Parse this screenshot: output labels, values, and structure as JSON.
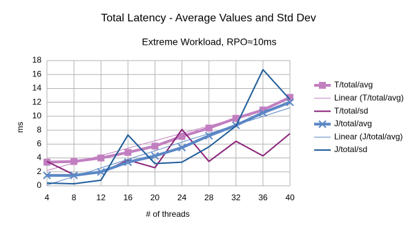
{
  "chart_data": {
    "type": "line",
    "title": "Total Latency - Average Values and Std Dev",
    "subtitle": "Extreme Workload, RPO≈10ms",
    "x_label": "# of threads",
    "y_label": "ms",
    "x": [
      4,
      8,
      12,
      16,
      20,
      24,
      28,
      32,
      36,
      40
    ],
    "xlim": [
      4,
      40
    ],
    "xticks": [
      4,
      8,
      12,
      16,
      20,
      24,
      28,
      32,
      36,
      40
    ],
    "ylim": [
      0,
      18
    ],
    "yticks": [
      0,
      2,
      4,
      6,
      8,
      10,
      12,
      14,
      16,
      18
    ],
    "grid": true,
    "legend": "right",
    "series": [
      {
        "name": "T/total/avg",
        "color": "#c27fc0",
        "width": 4,
        "marker": "square",
        "values": [
          3.4,
          3.5,
          4.0,
          4.8,
          5.7,
          7.1,
          8.3,
          9.7,
          10.9,
          12.7
        ]
      },
      {
        "name": "Linear (T/total/avg)",
        "color": "#c27fc0",
        "width": 1,
        "values": [
          2.21,
          3.28,
          4.35,
          5.41,
          6.48,
          7.54,
          8.61,
          9.67,
          10.74,
          11.81
        ]
      },
      {
        "name": "T/total/sd",
        "color": "#8b2379",
        "width": 2,
        "values": [
          3.5,
          1.6,
          1.9,
          3.7,
          2.6,
          8.1,
          3.5,
          6.4,
          4.3,
          7.5
        ]
      },
      {
        "name": "J/total/avg",
        "color": "#5b87c5",
        "width": 4,
        "marker": "x",
        "values": [
          1.5,
          1.5,
          2.0,
          3.4,
          4.3,
          5.5,
          7.2,
          8.7,
          10.5,
          12.0
        ]
      },
      {
        "name": "Linear (J/total/avg)",
        "color": "#5b87c5",
        "width": 1,
        "values": [
          0.11,
          1.34,
          2.57,
          3.81,
          5.04,
          6.28,
          7.51,
          8.75,
          9.98,
          11.21
        ]
      },
      {
        "name": "J/total/sd",
        "color": "#1f5d9a",
        "width": 2,
        "values": [
          0.4,
          0.3,
          0.8,
          7.3,
          3.2,
          3.4,
          5.6,
          8.6,
          16.7,
          12.4
        ]
      }
    ]
  }
}
